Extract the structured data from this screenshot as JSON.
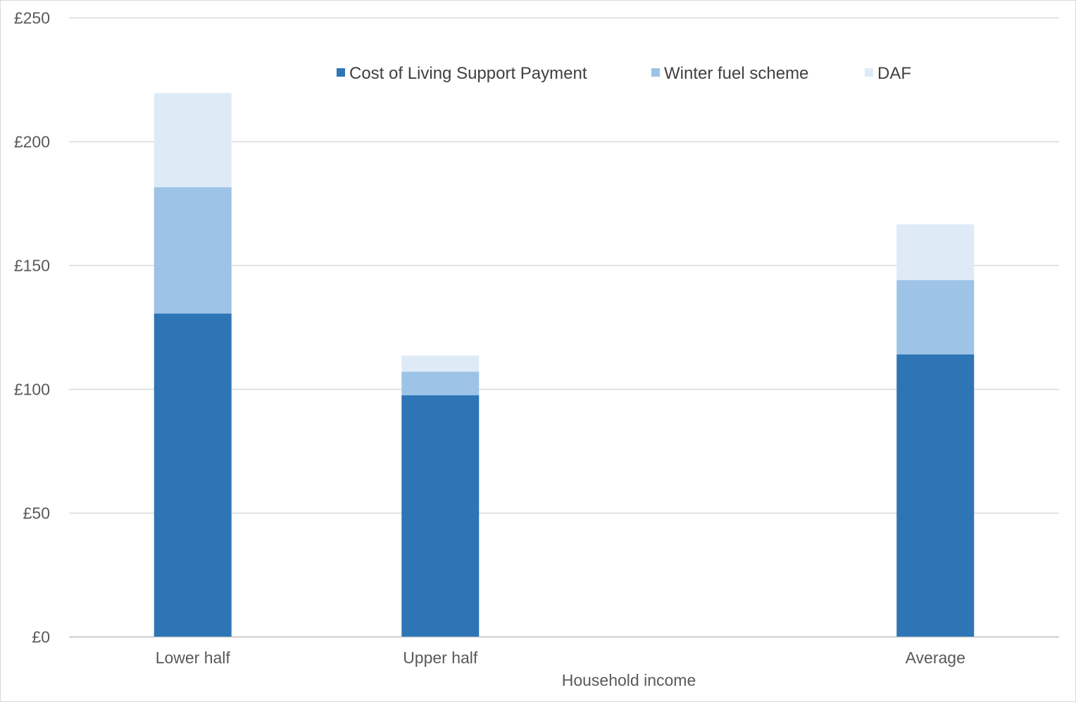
{
  "chart_data": {
    "type": "bar",
    "stacked": true,
    "categories": [
      "Lower half",
      "Upper half",
      "",
      "Average"
    ],
    "series": [
      {
        "name": "Cost of Living Support Payment",
        "values": [
          130.5,
          97.5,
          0,
          114
        ],
        "color": "#2E75B6"
      },
      {
        "name": "Winter fuel scheme",
        "values": [
          51,
          9.5,
          0,
          30
        ],
        "color": "#9DC3E6"
      },
      {
        "name": "DAF",
        "values": [
          38,
          6.5,
          0,
          22.5
        ],
        "color": "#DEEBF7"
      }
    ],
    "title": "",
    "xlabel": "Household income",
    "ylabel": "",
    "ylim": [
      0,
      250
    ],
    "yticks": [
      0,
      50,
      100,
      150,
      200,
      250
    ],
    "ytick_labels": [
      "£0",
      "£50",
      "£100",
      "£150",
      "£200",
      "£250"
    ],
    "grid": true,
    "legend_position": "top"
  }
}
